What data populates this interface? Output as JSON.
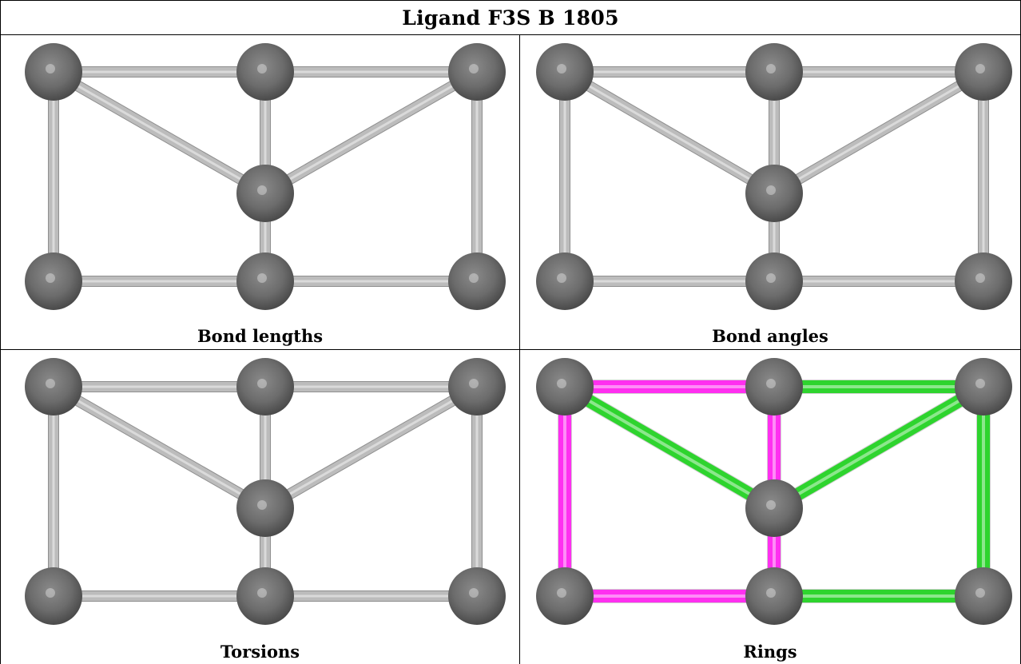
{
  "title": "Ligand F3S B 1805",
  "panels": [
    {
      "caption": "Bond lengths",
      "style": "plain"
    },
    {
      "caption": "Bond angles",
      "style": "plain"
    },
    {
      "caption": "Torsions",
      "style": "plain"
    },
    {
      "caption": "Rings",
      "style": "rings"
    }
  ],
  "molecule": {
    "atoms": [
      {
        "id": "a1",
        "x": 0,
        "y": 0
      },
      {
        "id": "a2",
        "x": 1,
        "y": 0
      },
      {
        "id": "a3",
        "x": 2,
        "y": 0
      },
      {
        "id": "a4",
        "x": 1,
        "y": 0.58
      },
      {
        "id": "a5",
        "x": 0,
        "y": 1
      },
      {
        "id": "a6",
        "x": 1,
        "y": 1
      },
      {
        "id": "a7",
        "x": 2,
        "y": 1
      }
    ],
    "bonds": [
      {
        "from": "a1",
        "to": "a2",
        "ring": "ring-1"
      },
      {
        "from": "a2",
        "to": "a3",
        "ring": "ring-2"
      },
      {
        "from": "a1",
        "to": "a4",
        "ring": "ring-2"
      },
      {
        "from": "a4",
        "to": "a3",
        "ring": "ring-2"
      },
      {
        "from": "a2",
        "to": "a6",
        "ring": "ring-1"
      },
      {
        "from": "a1",
        "to": "a5",
        "ring": "ring-1"
      },
      {
        "from": "a3",
        "to": "a7",
        "ring": "ring-2"
      },
      {
        "from": "a5",
        "to": "a6",
        "ring": "ring-1"
      },
      {
        "from": "a6",
        "to": "a7",
        "ring": "ring-2"
      }
    ]
  },
  "colors": {
    "atom": "#6e6e6e",
    "bond_plain": "#bcbcbc",
    "ring-1": "#ff2ff0",
    "ring-2": "#2ed42e"
  }
}
